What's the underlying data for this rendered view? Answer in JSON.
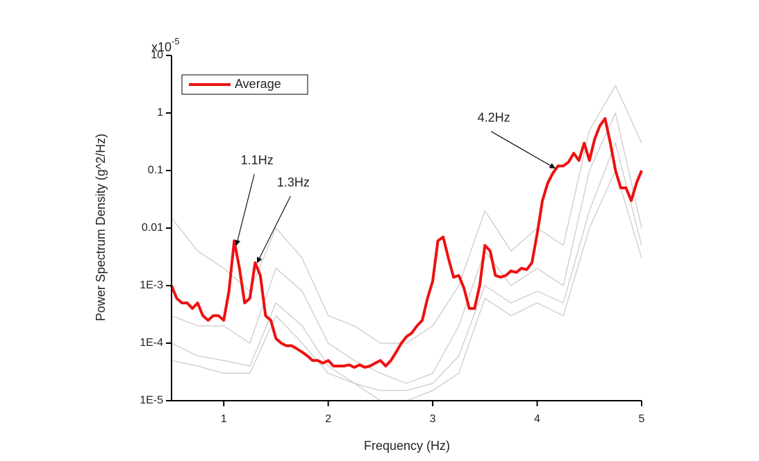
{
  "chart_data": {
    "type": "line",
    "xlabel": "Frequency (Hz)",
    "ylabel": "Power Spectrum Density (g^2/Hz)",
    "y_multiplier": {
      "base": "x10",
      "exponent": "-5"
    },
    "xlim": [
      0.5,
      5
    ],
    "xticks": [
      1,
      2,
      3,
      4,
      5
    ],
    "ylim": [
      1e-05,
      10
    ],
    "yticks": [
      10,
      1,
      0.1,
      0.01,
      {
        "value": 0.001,
        "label": "1E-3"
      },
      {
        "value": 0.0001,
        "label": "1E-4"
      },
      {
        "value": 1e-05,
        "label": "1E-5"
      }
    ],
    "log_y": true,
    "legend": "upper left",
    "series": [
      {
        "name": "Average",
        "color": "#ee1111",
        "x": [
          0.5,
          0.55,
          0.6,
          0.65,
          0.7,
          0.75,
          0.8,
          0.85,
          0.9,
          0.95,
          1.0,
          1.05,
          1.1,
          1.15,
          1.2,
          1.25,
          1.3,
          1.35,
          1.4,
          1.45,
          1.5,
          1.55,
          1.6,
          1.65,
          1.7,
          1.75,
          1.8,
          1.85,
          1.9,
          1.95,
          2.0,
          2.05,
          2.1,
          2.15,
          2.2,
          2.25,
          2.3,
          2.35,
          2.4,
          2.45,
          2.5,
          2.55,
          2.6,
          2.65,
          2.7,
          2.75,
          2.8,
          2.85,
          2.9,
          2.95,
          3.0,
          3.05,
          3.1,
          3.15,
          3.2,
          3.25,
          3.3,
          3.35,
          3.4,
          3.45,
          3.5,
          3.55,
          3.6,
          3.65,
          3.7,
          3.75,
          3.8,
          3.85,
          3.9,
          3.95,
          4.0,
          4.05,
          4.1,
          4.15,
          4.2,
          4.25,
          4.3,
          4.35,
          4.4,
          4.45,
          4.5,
          4.55,
          4.6,
          4.65,
          4.7,
          4.75,
          4.8,
          4.85,
          4.9,
          4.95,
          5.0
        ],
        "values": [
          0.001,
          0.0006,
          0.0005,
          0.0005,
          0.0004,
          0.0005,
          0.0003,
          0.00025,
          0.0003,
          0.0003,
          0.00025,
          0.0008,
          0.006,
          0.002,
          0.0005,
          0.0006,
          0.0025,
          0.0015,
          0.0003,
          0.00025,
          0.00012,
          0.0001,
          9e-05,
          9e-05,
          8e-05,
          7e-05,
          6e-05,
          5e-05,
          5e-05,
          4.5e-05,
          5e-05,
          4e-05,
          4e-05,
          4e-05,
          4.2e-05,
          3.8e-05,
          4.2e-05,
          3.8e-05,
          4e-05,
          4.5e-05,
          5e-05,
          4e-05,
          5e-05,
          7e-05,
          0.0001,
          0.00013,
          0.00015,
          0.0002,
          0.00025,
          0.0006,
          0.0012,
          0.006,
          0.007,
          0.003,
          0.0014,
          0.0015,
          0.0009,
          0.0004,
          0.0004,
          0.001,
          0.005,
          0.004,
          0.0015,
          0.0014,
          0.0015,
          0.0018,
          0.0017,
          0.002,
          0.0019,
          0.0025,
          0.008,
          0.03,
          0.06,
          0.09,
          0.12,
          0.12,
          0.14,
          0.2,
          0.15,
          0.3,
          0.15,
          0.35,
          0.6,
          0.8,
          0.3,
          0.1,
          0.05,
          0.05,
          0.03,
          0.06,
          0.1
        ]
      },
      {
        "color": "#c8c8c8",
        "x": [
          0.5,
          0.75,
          1.0,
          1.25,
          1.5,
          1.75,
          2.0,
          2.25,
          2.5,
          2.75,
          3.0,
          3.25,
          3.5,
          3.75,
          4.0,
          4.25,
          4.5,
          4.75,
          5.0
        ],
        "values": [
          0.015,
          0.004,
          0.002,
          0.0008,
          0.01,
          0.003,
          0.0003,
          0.0002,
          0.0001,
          0.0001,
          0.0002,
          0.001,
          0.02,
          0.004,
          0.01,
          0.005,
          0.5,
          3,
          0.3
        ]
      },
      {
        "color": "#c8c8c8",
        "x": [
          0.5,
          0.75,
          1.0,
          1.25,
          1.5,
          1.75,
          2.0,
          2.25,
          2.5,
          2.75,
          3.0,
          3.25,
          3.5,
          3.75,
          4.0,
          4.25,
          4.5,
          4.75,
          5.0
        ],
        "values": [
          0.0003,
          0.0002,
          0.0002,
          0.0001,
          0.002,
          0.0008,
          0.0001,
          5e-05,
          3e-05,
          2e-05,
          3e-05,
          0.0002,
          0.004,
          0.001,
          0.002,
          0.001,
          0.1,
          1,
          0.01
        ]
      },
      {
        "color": "#c8c8c8",
        "x": [
          0.5,
          0.75,
          1.0,
          1.25,
          1.5,
          1.75,
          2.0,
          2.25,
          2.5,
          2.75,
          3.0,
          3.25,
          3.5,
          3.75,
          4.0,
          4.25,
          4.5,
          4.75,
          5.0
        ],
        "values": [
          0.0001,
          6e-05,
          5e-05,
          4e-05,
          0.0005,
          0.0002,
          4e-05,
          2e-05,
          1.5e-05,
          1.5e-05,
          2e-05,
          6e-05,
          0.001,
          0.0005,
          0.0008,
          0.0005,
          0.02,
          0.3,
          0.005
        ]
      },
      {
        "color": "#c8c8c8",
        "x": [
          0.5,
          0.75,
          1.0,
          1.25,
          1.5,
          1.75,
          2.0,
          2.25,
          2.5,
          2.75,
          3.0,
          3.25,
          3.5,
          3.75,
          4.0,
          4.25,
          4.5,
          4.75,
          5.0
        ],
        "values": [
          5e-05,
          4e-05,
          3e-05,
          3e-05,
          0.0003,
          0.0001,
          3e-05,
          2e-05,
          1e-05,
          1e-05,
          1.5e-05,
          3e-05,
          0.0006,
          0.0003,
          0.0005,
          0.0003,
          0.01,
          0.1,
          0.003
        ]
      }
    ],
    "annotations": [
      {
        "text": "1.1Hz",
        "x": 1.12,
        "y": 0.005
      },
      {
        "text": "1.3Hz",
        "x": 1.32,
        "y": 0.0025
      },
      {
        "text": "4.2Hz",
        "x": 4.17,
        "y": 0.11
      }
    ]
  }
}
